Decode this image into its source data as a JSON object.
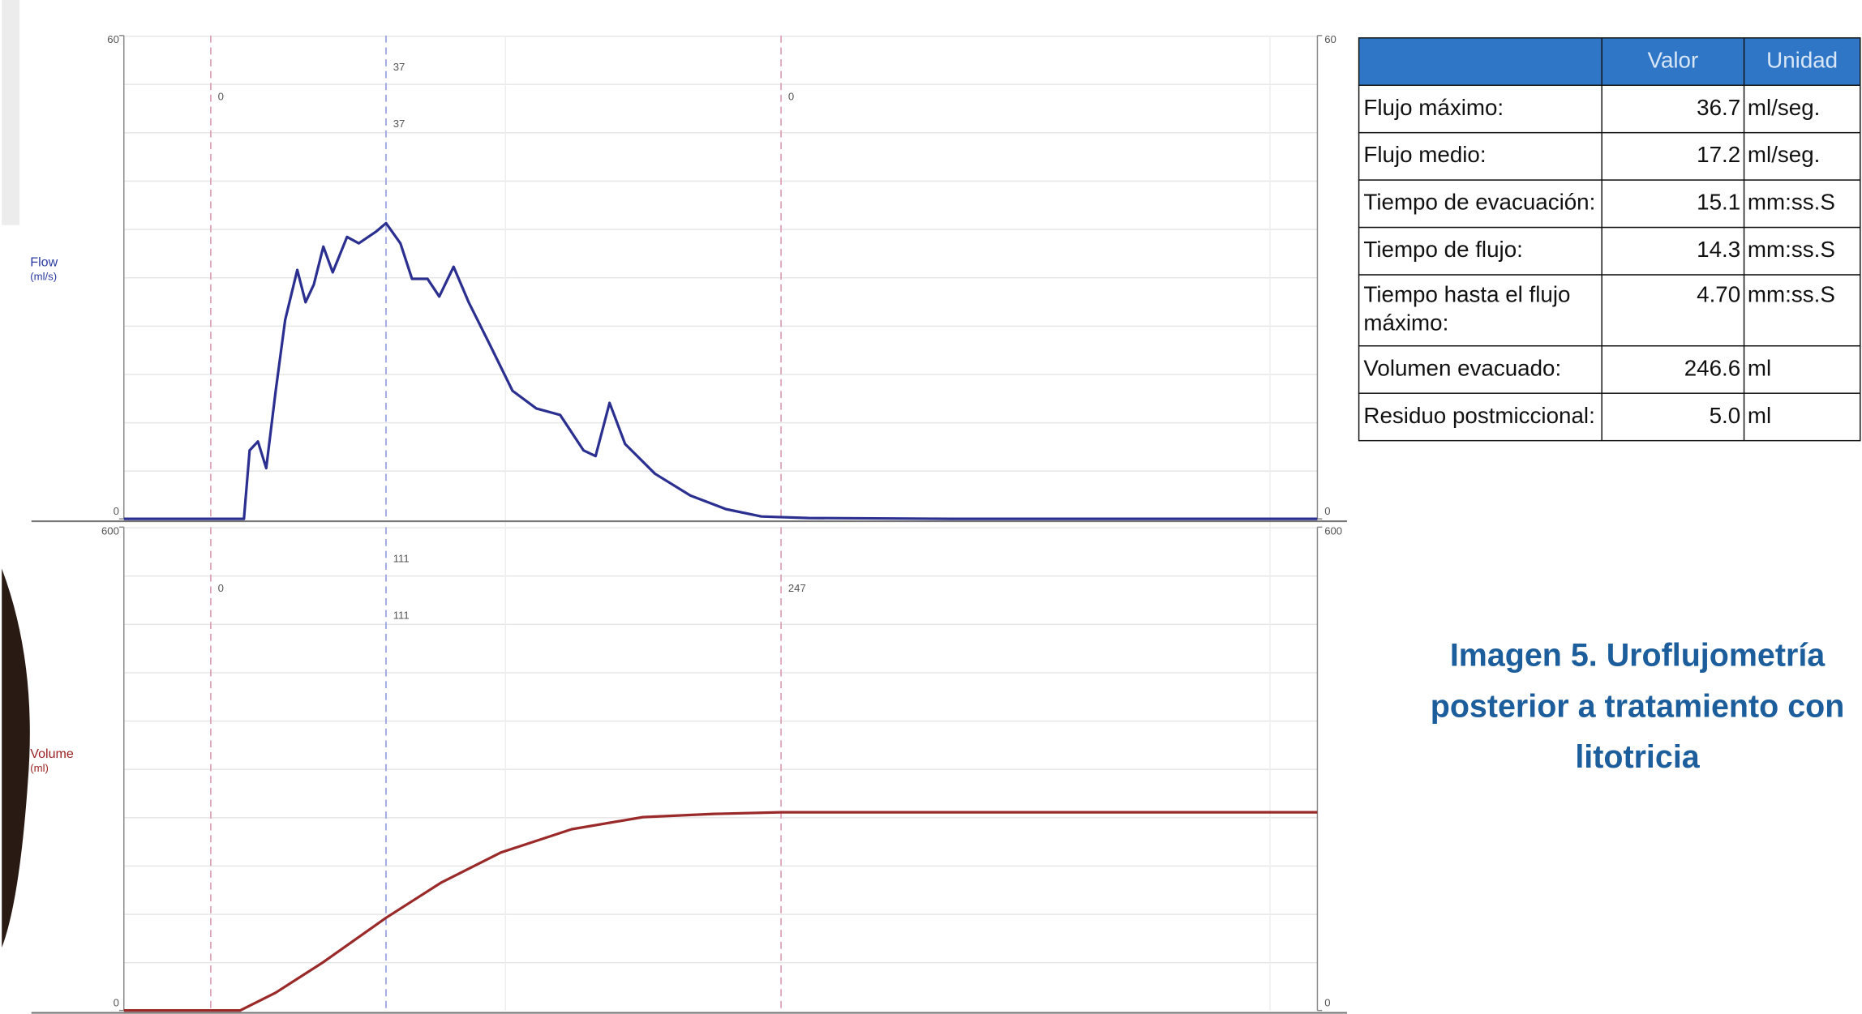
{
  "chart_data": [
    {
      "type": "line",
      "y_label": "Flow",
      "y_unit": "(ml/s)",
      "label_color": "#2a3aa0",
      "x": [
        -2.3,
        0.88,
        1.03,
        1.25,
        1.47,
        1.72,
        1.97,
        2.29,
        2.51,
        2.73,
        2.98,
        3.23,
        3.61,
        3.92,
        4.39,
        4.64,
        5.02,
        5.33,
        5.74,
        6.05,
        6.43,
        6.83,
        7.37,
        7.99,
        8.62,
        9.25,
        9.87,
        10.19,
        10.56,
        10.97,
        11.76,
        12.7,
        13.64,
        14.58,
        15.83,
        19.6,
        29.3
      ],
      "series": [
        {
          "color": "#2b2f8f",
          "values": [
            0,
            0,
            8.5,
            9.6,
            6.3,
            15.9,
            24.7,
            30.9,
            26.9,
            29.1,
            33.8,
            30.6,
            35.0,
            34.2,
            35.7,
            36.7,
            34.2,
            29.8,
            29.8,
            27.6,
            31.3,
            26.9,
            21.8,
            15.9,
            13.7,
            12.9,
            8.5,
            7.8,
            14.4,
            9.3,
            5.6,
            2.9,
            1.2,
            0.3,
            0.1,
            0,
            0
          ]
        }
      ],
      "xlim": [
        -2.3,
        29.3
      ],
      "ylim": [
        0,
        60
      ],
      "yticks": [
        0,
        60
      ],
      "markers": [
        {
          "x": 0,
          "color": "#dba3b5",
          "labels": [
            "0"
          ]
        },
        {
          "x": 4.64,
          "color": "#9aa3e0",
          "labels": [
            "37",
            "37"
          ]
        },
        {
          "x": 15.1,
          "color": "#dba3b5",
          "labels": [
            "0"
          ]
        }
      ]
    },
    {
      "type": "line",
      "y_label": "Volume",
      "y_unit": "(ml)",
      "label_color": "#9a1f1f",
      "x": [
        -2.3,
        0.78,
        1.72,
        2.98,
        4.64,
        6.11,
        7.68,
        9.56,
        11.44,
        13.32,
        15.11,
        29.3
      ],
      "series": [
        {
          "color": "#9a2a2a",
          "values": [
            0,
            0,
            22,
            60,
            115,
            159,
            196,
            225,
            240,
            244,
            246,
            246
          ]
        }
      ],
      "xlim": [
        -2.3,
        29.3
      ],
      "ylim": [
        0,
        600
      ],
      "yticks": [
        0,
        600
      ],
      "markers": [
        {
          "x": 0,
          "color": "#dba3b5",
          "labels": [
            "0"
          ]
        },
        {
          "x": 4.64,
          "color": "#9aa3e0",
          "labels": [
            "111",
            "111"
          ]
        },
        {
          "x": 15.1,
          "color": "#dba3b5",
          "labels": [
            "247"
          ]
        }
      ]
    }
  ],
  "table": {
    "header": [
      "Valor",
      "Unidad"
    ],
    "rows": [
      [
        "Flujo máximo:",
        "36.7",
        "ml/seg."
      ],
      [
        "Flujo medio:",
        "17.2",
        "ml/seg."
      ],
      [
        "Tiempo de evacuación:",
        "15.1",
        "mm:ss.S"
      ],
      [
        "Tiempo de flujo:",
        "14.3",
        "mm:ss.S"
      ],
      [
        "Tiempo hasta el flujo máximo:",
        "4.70",
        "mm:ss.S"
      ],
      [
        "Volumen evacuado:",
        "246.6",
        "ml"
      ],
      [
        "Residuo postmiccional:",
        "5.0",
        "ml"
      ]
    ]
  },
  "caption": [
    "Imagen 5. Uroflujometría",
    "posterior a tratamiento con",
    "litotricia"
  ]
}
